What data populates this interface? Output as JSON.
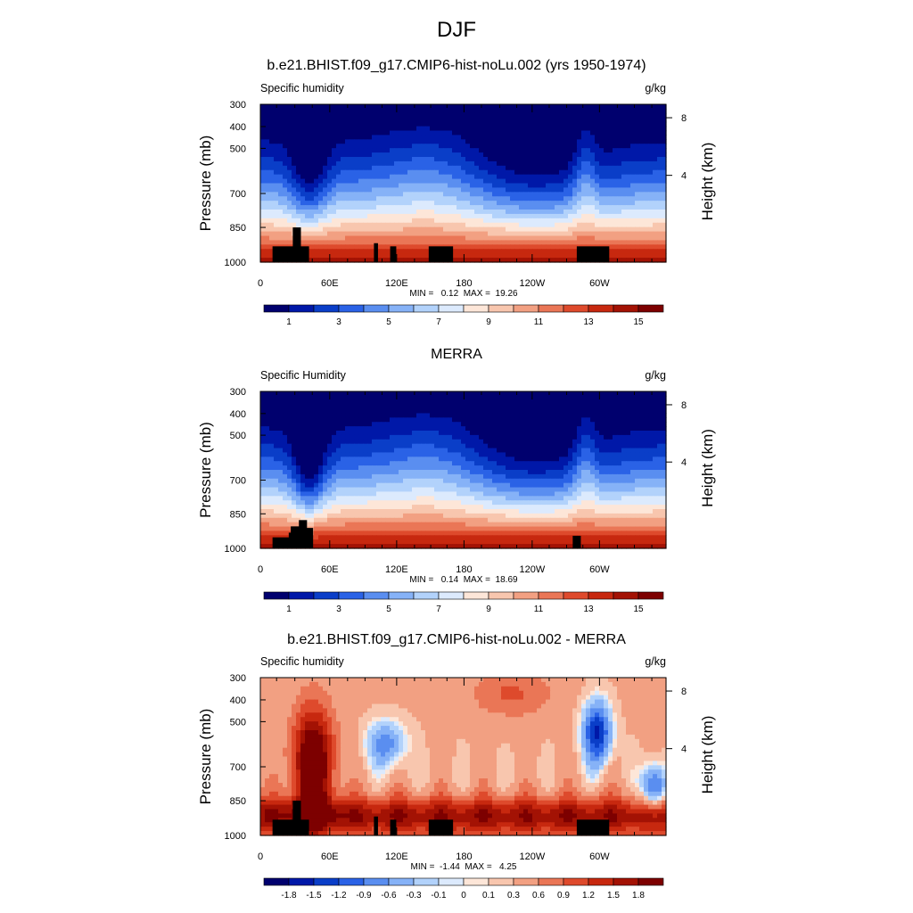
{
  "page": {
    "title": "DJF"
  },
  "chart_data": [
    {
      "type": "heatmap",
      "title": "b.e21.BHIST.f09_g17.CMIP6-hist-noLu.002 (yrs 1950-1974)",
      "left_label": "Specific humidity",
      "right_label": "g/kg",
      "xlabel": "",
      "ylabel": "Pressure (mb)",
      "y2label": "Height (km)",
      "x_ticks": [
        "0",
        "60E",
        "120E",
        "180",
        "120W",
        "60W"
      ],
      "y_ticks": [
        "300",
        "400",
        "500",
        "700",
        "850",
        "1000"
      ],
      "y2_ticks": [
        "8",
        "4"
      ],
      "stats": "MIN =   0.12  MAX =  19.26",
      "colorbar_labels": [
        "1",
        "3",
        "5",
        "7",
        "9",
        "11",
        "13",
        "15"
      ],
      "colors": [
        "#00006e",
        "#0018a8",
        "#0a3ec8",
        "#2a62e6",
        "#5a8ef0",
        "#86b2f7",
        "#b2d2fb",
        "#dceafd",
        "#fde6d8",
        "#f8c6ae",
        "#f2a082",
        "#ea7656",
        "#de4a2c",
        "#c7280f",
        "#a31204",
        "#7d0000"
      ],
      "min": 0.12,
      "max": 19.26
    },
    {
      "type": "heatmap",
      "title": "MERRA",
      "left_label": "Specific Humidity",
      "right_label": "g/kg",
      "xlabel": "",
      "ylabel": "Pressure (mb)",
      "y2label": "Height (km)",
      "x_ticks": [
        "0",
        "60E",
        "120E",
        "180",
        "120W",
        "60W"
      ],
      "y_ticks": [
        "300",
        "400",
        "500",
        "700",
        "850",
        "1000"
      ],
      "y2_ticks": [
        "8",
        "4"
      ],
      "stats": "MIN =   0.14  MAX =  18.69",
      "colorbar_labels": [
        "1",
        "3",
        "5",
        "7",
        "9",
        "11",
        "13",
        "15"
      ],
      "colors": [
        "#00006e",
        "#0018a8",
        "#0a3ec8",
        "#2a62e6",
        "#5a8ef0",
        "#86b2f7",
        "#b2d2fb",
        "#dceafd",
        "#fde6d8",
        "#f8c6ae",
        "#f2a082",
        "#ea7656",
        "#de4a2c",
        "#c7280f",
        "#a31204",
        "#7d0000"
      ],
      "min": 0.14,
      "max": 18.69
    },
    {
      "type": "heatmap",
      "title": "b.e21.BHIST.f09_g17.CMIP6-hist-noLu.002 - MERRA",
      "left_label": "Specific humidity",
      "right_label": "g/kg",
      "xlabel": "",
      "ylabel": "Pressure (mb)",
      "y2label": "Height (km)",
      "x_ticks": [
        "0",
        "60E",
        "120E",
        "180",
        "120W",
        "60W"
      ],
      "y_ticks": [
        "300",
        "400",
        "500",
        "700",
        "850",
        "1000"
      ],
      "y2_ticks": [
        "8",
        "4"
      ],
      "stats": "MIN =  -1.44  MAX =   4.25",
      "colorbar_labels": [
        "-1.8",
        "-1.5",
        "-1.2",
        "-0.9",
        "-0.6",
        "-0.3",
        "-0.1",
        "0",
        "0.1",
        "0.3",
        "0.6",
        "0.9",
        "1.2",
        "1.5",
        "1.8"
      ],
      "colors": [
        "#00006e",
        "#0018a8",
        "#0a3ec8",
        "#2a62e6",
        "#5a8ef0",
        "#86b2f7",
        "#b2d2fb",
        "#dceafd",
        "#fde6d8",
        "#f8c6ae",
        "#f2a082",
        "#ea7656",
        "#de4a2c",
        "#c7280f",
        "#a31204",
        "#7d0000"
      ],
      "min": -1.44,
      "max": 4.25
    }
  ]
}
